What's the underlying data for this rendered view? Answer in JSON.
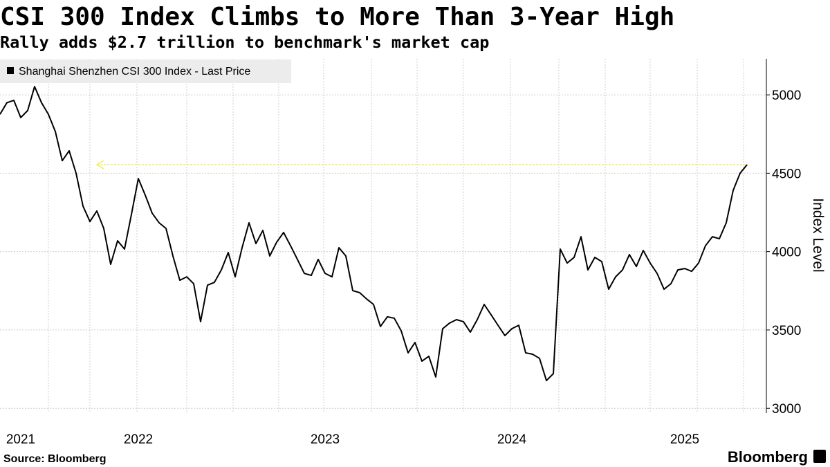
{
  "chart_data": {
    "type": "line",
    "title": "CSI 300 Index Climbs to More Than 3-Year High",
    "subtitle": "Rally adds $2.7 trillion to benchmark's market cap",
    "y_axis_label": "Index Level",
    "source": "Source: Bloomberg",
    "brand": "Bloomberg",
    "categories": [
      null,
      null,
      null,
      "2021",
      null,
      null,
      null,
      null,
      null,
      null,
      null,
      null,
      null,
      null,
      null,
      null,
      null,
      null,
      null,
      null,
      "2022",
      null,
      null,
      null,
      null,
      null,
      null,
      null,
      null,
      null,
      null,
      null,
      null,
      null,
      null,
      null,
      null,
      null,
      null,
      null,
      null,
      null,
      null,
      null,
      null,
      null,
      null,
      "2023",
      null,
      null,
      null,
      null,
      null,
      null,
      null,
      null,
      null,
      null,
      null,
      null,
      null,
      null,
      null,
      null,
      null,
      null,
      null,
      null,
      null,
      null,
      null,
      null,
      null,
      null,
      "2024",
      null,
      null,
      null,
      null,
      null,
      null,
      null,
      null,
      null,
      null,
      null,
      null,
      null,
      null,
      null,
      null,
      null,
      null,
      null,
      null,
      null,
      null,
      null,
      null,
      "2025",
      null,
      null,
      null,
      null,
      null,
      null,
      null,
      null,
      null
    ],
    "series": [
      {
        "name": "Shanghai Shenzhen CSI 300 Index - Last Price",
        "color": "#000000",
        "values": [
          4876,
          4950,
          4965,
          4855,
          4900,
          5053,
          4950,
          4876,
          4766,
          4580,
          4643,
          4500,
          4290,
          4192,
          4259,
          4148,
          3919,
          4069,
          4016,
          4237,
          4466,
          4360,
          4245,
          4184,
          4148,
          3972,
          3817,
          3839,
          3795,
          3553,
          3786,
          3804,
          3883,
          3994,
          3839,
          4025,
          4184,
          4051,
          4135,
          3972,
          4060,
          4122,
          4038,
          3950,
          3861,
          3848,
          3950,
          3861,
          3839,
          4025,
          3972,
          3751,
          3738,
          3698,
          3663,
          3522,
          3584,
          3575,
          3495,
          3354,
          3420,
          3301,
          3332,
          3200,
          3508,
          3544,
          3566,
          3553,
          3486,
          3566,
          3663,
          3597,
          3530,
          3464,
          3508,
          3530,
          3354,
          3345,
          3319,
          3177,
          3221,
          4016,
          3927,
          3963,
          4095,
          3883,
          3963,
          3936,
          3760,
          3839,
          3883,
          3981,
          3905,
          4007,
          3927,
          3861,
          3760,
          3795,
          3883,
          3892,
          3874,
          3927,
          4038,
          4095,
          4082,
          4184,
          4391,
          4500,
          4554
        ]
      }
    ],
    "ylim": [
      2970,
      5230
    ],
    "yticks": [
      3000,
      3500,
      4000,
      4500,
      5000
    ],
    "grid": true,
    "legend": "top-left"
  }
}
